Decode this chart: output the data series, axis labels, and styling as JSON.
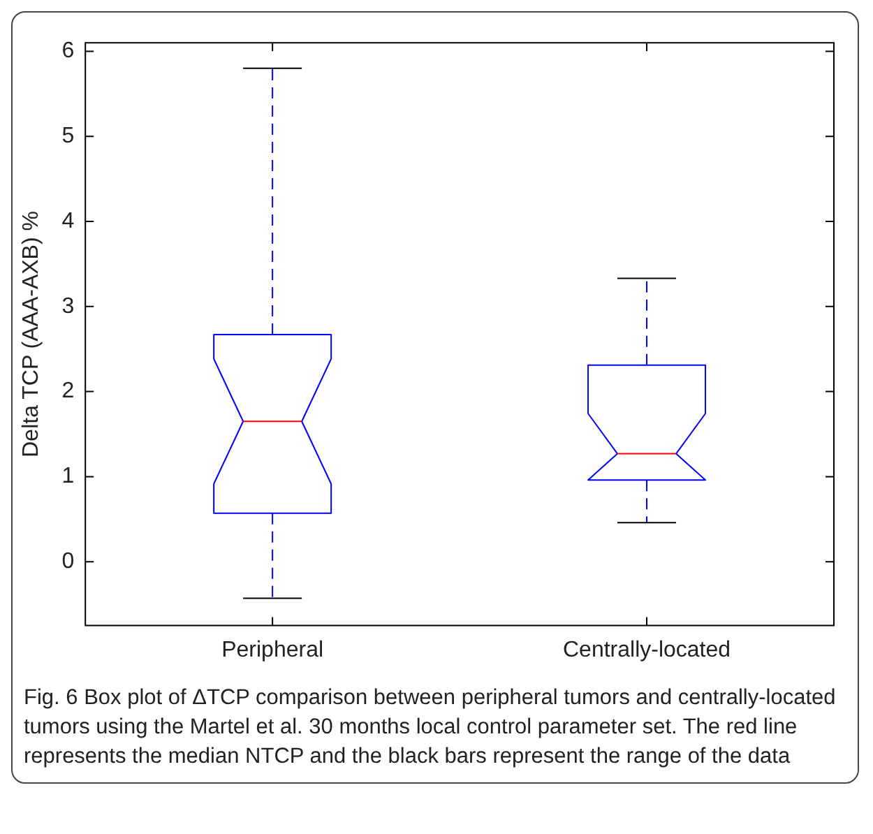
{
  "chart_data": {
    "type": "box",
    "ylabel": "Delta TCP (AAA-AXB) %",
    "categories": [
      "Peripheral",
      "Centrally-located"
    ],
    "ylim": [
      -0.75,
      6.1
    ],
    "yticks": [
      0,
      1,
      2,
      3,
      4,
      5,
      6
    ],
    "grid": false,
    "series": [
      {
        "color": "#0000ff",
        "boxes": [
          {
            "low": -0.43,
            "q1": 0.57,
            "median": 1.65,
            "q3": 2.67,
            "high": 5.8
          },
          {
            "low": 0.46,
            "q1": 0.96,
            "median": 1.27,
            "q3": 2.31,
            "high": 3.33
          }
        ]
      }
    ],
    "annotations": [
      "Fig. 6 Box plot of ΔTCP comparison between peripheral tumors and centrally-located tumors using the Martel et al. 30 months local control parameter set. The red line represents the median NTCP and the black bars represent the range of the data"
    ]
  }
}
